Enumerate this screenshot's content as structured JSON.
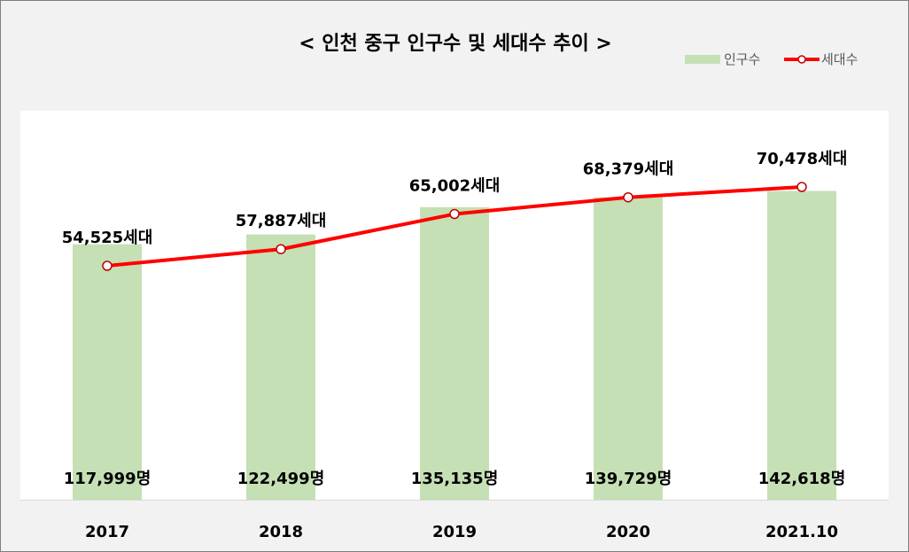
{
  "chart_data": {
    "type": "bar",
    "title": "< 인천 중구 인구수 및 세대수 추이 >",
    "categories": [
      "2017",
      "2018",
      "2019",
      "2020",
      "2021.10"
    ],
    "series": [
      {
        "name": "인구수",
        "type": "bar",
        "values": [
          117999,
          122499,
          135135,
          139729,
          142618
        ],
        "labels": [
          "117,999명",
          "122,499명",
          "135,135명",
          "139,729명",
          "142,618명"
        ],
        "color": "#c5e0b4"
      },
      {
        "name": "세대수",
        "type": "line",
        "values": [
          54525,
          57887,
          65002,
          68379,
          70478
        ],
        "labels": [
          "54,525세대",
          "57,887세대",
          "65,002세대",
          "68,379세대",
          "70,478세대"
        ],
        "color": "#ff0000"
      }
    ],
    "legend_position": "top-right",
    "grid": false,
    "xlabel": "",
    "ylabel": ""
  }
}
